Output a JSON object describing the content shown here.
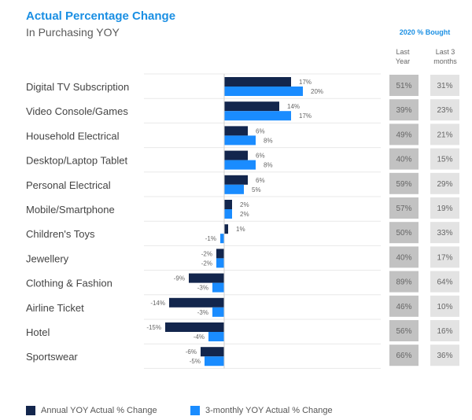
{
  "title": "Actual Percentage Change",
  "subtitle": "In Purchasing YOY",
  "bought_header": "2020 % Bought",
  "bought_columns": [
    {
      "line1": "Last",
      "line2": "Year"
    },
    {
      "line1": "Last 3",
      "line2": "months"
    }
  ],
  "colors": {
    "annual": "#13264d",
    "monthly": "#1a8cff",
    "cell_last_year": "#c2c2c2",
    "cell_last_3": "#e3e3e3"
  },
  "chart_data": {
    "type": "bar",
    "orientation": "horizontal",
    "categories": [
      "Digital TV Subscription",
      "Video Console/Games",
      "Household Electrical",
      "Desktop/Laptop Tablet",
      "Personal Electrical",
      "Mobile/Smartphone",
      "Children's Toys",
      "Jewellery",
      "Clothing & Fashion",
      "Airline Ticket",
      "Hotel",
      "Sportswear"
    ],
    "series": [
      {
        "name": "Annual YOY Actual % Change",
        "values": [
          17,
          14,
          6,
          6,
          6,
          2,
          1,
          -2,
          -9,
          -14,
          -15,
          -6
        ]
      },
      {
        "name": "3-monthly YOY Actual % Change",
        "values": [
          20,
          17,
          8,
          8,
          5,
          2,
          -1,
          -2,
          -3,
          -3,
          -4,
          -5
        ]
      }
    ],
    "bar_labels": [
      [
        "17%",
        "14%",
        "6%",
        "6%",
        "6%",
        "2%",
        "1%",
        "-2%",
        "-9%",
        "-14%",
        "-15%",
        "-6%"
      ],
      [
        "20%",
        "17%",
        "8%",
        "8%",
        "5%",
        "2%",
        "-1%",
        "-2%",
        "-3%",
        "-3%",
        "-4%",
        "-5%"
      ]
    ],
    "table": {
      "columns": [
        "Last Year",
        "Last 3 months"
      ],
      "last_year": [
        "51%",
        "39%",
        "49%",
        "40%",
        "59%",
        "57%",
        "50%",
        "40%",
        "89%",
        "46%",
        "56%",
        "66%"
      ],
      "last_3_months": [
        "31%",
        "23%",
        "21%",
        "15%",
        "29%",
        "19%",
        "33%",
        "17%",
        "64%",
        "10%",
        "16%",
        "36%"
      ]
    },
    "legend_position": "bottom-left",
    "grid": false
  }
}
